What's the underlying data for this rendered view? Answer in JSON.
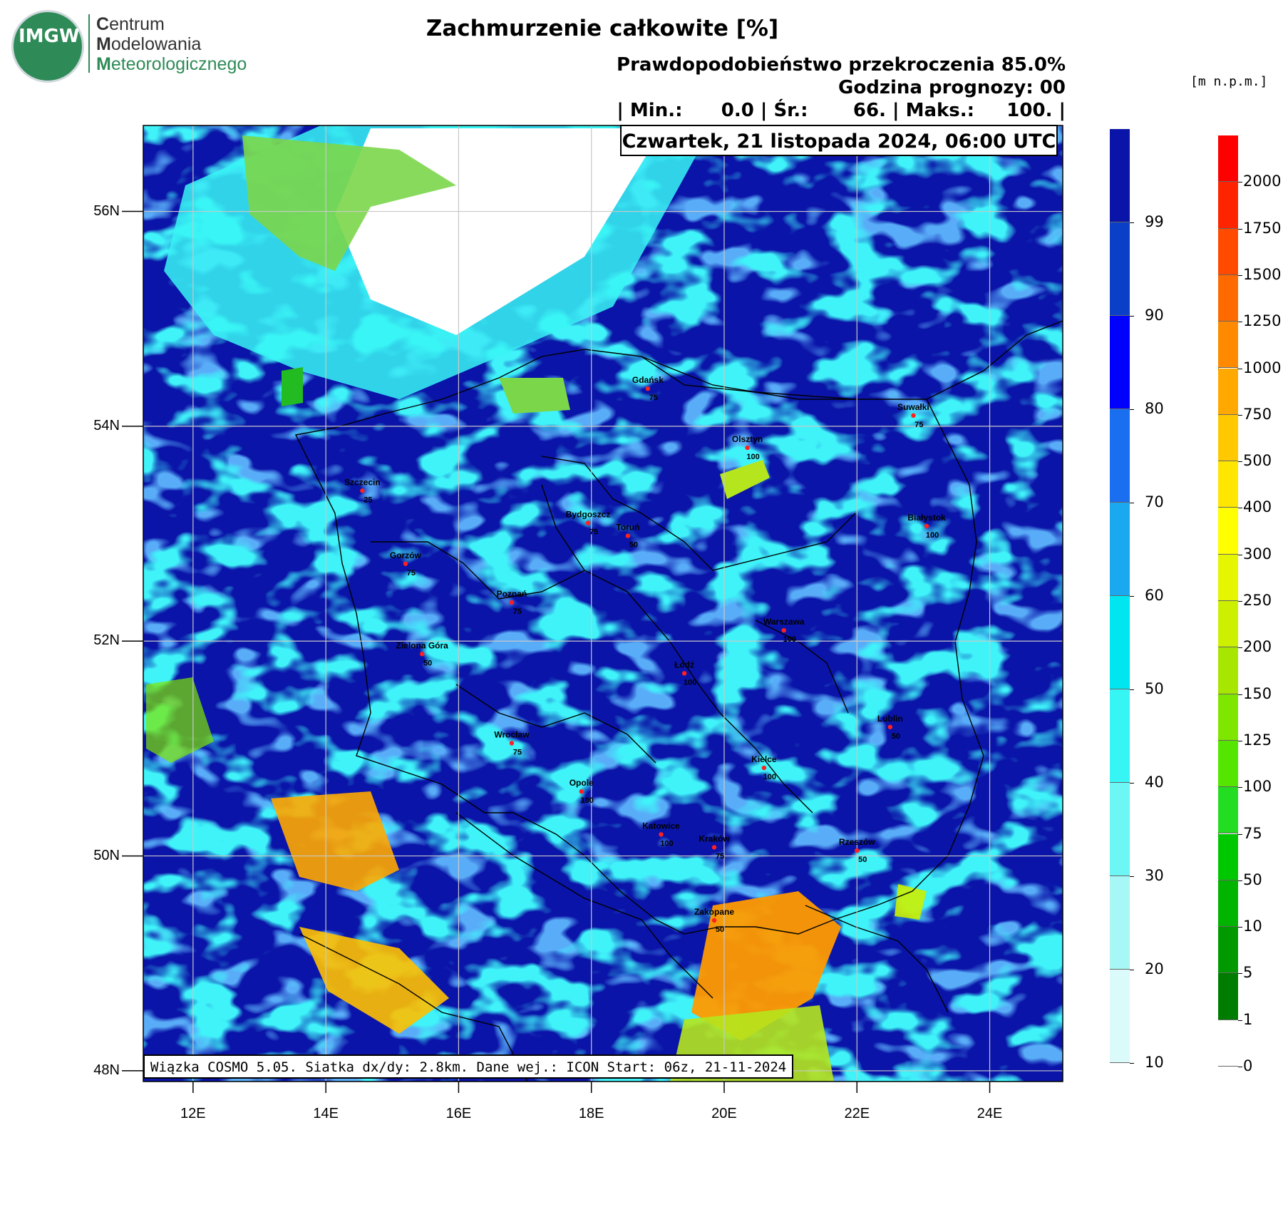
{
  "logo": {
    "seal_text": "IMGW",
    "line1_initial": "C",
    "line1_rest": "entrum",
    "line2_initial": "M",
    "line2_rest": "odelowania",
    "line3_initial": "M",
    "line3_rest": "eteorologicznego"
  },
  "title": "Zachmurzenie całkowite [%]",
  "meta": {
    "probability": "Prawdopodobieństwo przekroczenia 85.0%",
    "forecast_hour": "Godzina prognozy: 00",
    "stats": "| Min.:      0.0 | Śr.:       66. | Maks.:     100. |"
  },
  "date": "Czwartek, 21 listopada 2024, 06:00 UTC",
  "credit": "Wiązka COSMO 5.05. Siatka dx/dy: 2.8km. Dane wej.: ICON Start: 06z, 21-11-2024",
  "map": {
    "lat_labels": [
      "56N",
      "54N",
      "52N",
      "50N",
      "48N"
    ],
    "lat_values": [
      56,
      54,
      52,
      50,
      48
    ],
    "lon_labels": [
      "12E",
      "14E",
      "16E",
      "18E",
      "20E",
      "22E",
      "24E"
    ],
    "lon_values": [
      12,
      14,
      16,
      18,
      20,
      22,
      24
    ],
    "lon_range": [
      11.25,
      25.1
    ],
    "lat_range": [
      47.9,
      56.8
    ],
    "background_color": "#0a14a8",
    "cities": [
      {
        "name": "Gdańsk",
        "value": "75",
        "lon": 18.85,
        "lat": 54.35
      },
      {
        "name": "Suwałki",
        "value": "75",
        "lon": 22.85,
        "lat": 54.1
      },
      {
        "name": "Olsztyn",
        "value": "100",
        "lon": 20.35,
        "lat": 53.8
      },
      {
        "name": "Szczecin",
        "value": "25",
        "lon": 14.55,
        "lat": 53.4
      },
      {
        "name": "Bydgoszcz",
        "value": "75",
        "lon": 17.95,
        "lat": 53.1
      },
      {
        "name": "Toruń",
        "value": "50",
        "lon": 18.55,
        "lat": 52.98
      },
      {
        "name": "Białystok",
        "value": "100",
        "lon": 23.05,
        "lat": 53.07
      },
      {
        "name": "Gorzów",
        "value": "75",
        "lon": 15.2,
        "lat": 52.72
      },
      {
        "name": "Poznań",
        "value": "75",
        "lon": 16.8,
        "lat": 52.36
      },
      {
        "name": "Warszawa",
        "value": "100",
        "lon": 20.9,
        "lat": 52.1
      },
      {
        "name": "Zielona Góra",
        "value": "50",
        "lon": 15.45,
        "lat": 51.88
      },
      {
        "name": "Łódź",
        "value": "100",
        "lon": 19.4,
        "lat": 51.7
      },
      {
        "name": "Lublin",
        "value": "50",
        "lon": 22.5,
        "lat": 51.2
      },
      {
        "name": "Wrocław",
        "value": "75",
        "lon": 16.8,
        "lat": 51.05
      },
      {
        "name": "Kielce",
        "value": "100",
        "lon": 20.6,
        "lat": 50.82
      },
      {
        "name": "Opole",
        "value": "100",
        "lon": 17.85,
        "lat": 50.6
      },
      {
        "name": "Katowice",
        "value": "100",
        "lon": 19.05,
        "lat": 50.2
      },
      {
        "name": "Kraków",
        "value": "75",
        "lon": 19.85,
        "lat": 50.08
      },
      {
        "name": "Rzeszów",
        "value": "50",
        "lon": 22.0,
        "lat": 50.05
      },
      {
        "name": "Zakopane",
        "value": "50",
        "lon": 19.85,
        "lat": 49.4
      }
    ]
  },
  "cloud_scale": {
    "labels": [
      "99",
      "90",
      "80",
      "70",
      "60",
      "50",
      "40",
      "30",
      "20",
      "10"
    ],
    "colors": [
      "#0a14a8",
      "#0a3fc8",
      "#0000ff",
      "#1a6ef0",
      "#1aa9f0",
      "#00e6f0",
      "#38f5f5",
      "#6cf7f5",
      "#a6f7f5",
      "#dbfafa"
    ]
  },
  "terrain_scale": {
    "unit": "[m n.p.m.]",
    "labels": [
      "2000",
      "1750",
      "1500",
      "1250",
      "1000",
      "750",
      "500",
      "400",
      "300",
      "250",
      "200",
      "150",
      "125",
      "100",
      "75",
      "50",
      "10",
      "5",
      "1",
      "0"
    ],
    "colors": [
      "#ff0000",
      "#ff2400",
      "#ff4a00",
      "#ff6a00",
      "#ff8a00",
      "#ffa800",
      "#ffc800",
      "#ffe600",
      "#ffff00",
      "#e6f500",
      "#ccf000",
      "#a6e600",
      "#7fe600",
      "#55e600",
      "#22dd22",
      "#00c800",
      "#00b400",
      "#009a00",
      "#007d00",
      "#ffffff"
    ]
  }
}
